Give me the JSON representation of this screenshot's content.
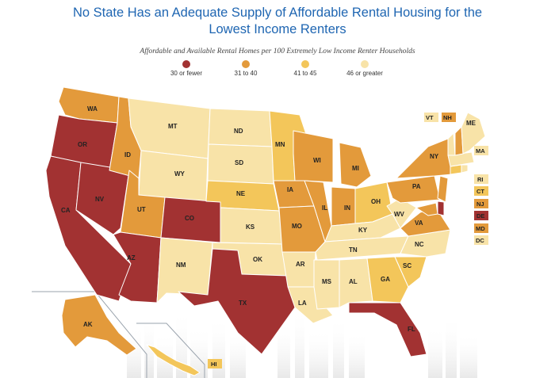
{
  "title_line1": "No State Has an Adequate Supply of Affordable Rental Housing for the",
  "title_line2": "Lowest Income Renters",
  "subtitle": "Affordable and Available Rental Homes per 100 Extremely Low Income Renter Households",
  "colors": {
    "c30": "#a23232",
    "c31": "#e39a3b",
    "c41": "#f3c65a",
    "c46": "#f8e3a8",
    "line": "#ffffff",
    "inset": "#9aa3ad"
  },
  "legend": [
    {
      "label": "30 or fewer",
      "color": "#a23232"
    },
    {
      "label": "31 to 40",
      "color": "#e39a3b"
    },
    {
      "label": "41 to 45",
      "color": "#f3c65a"
    },
    {
      "label": "46 or greater",
      "color": "#f8e3a8"
    }
  ],
  "states": [
    {
      "abbr": "WA",
      "cat": "31 to 40"
    },
    {
      "abbr": "OR",
      "cat": "30 or fewer"
    },
    {
      "abbr": "CA",
      "cat": "30 or fewer"
    },
    {
      "abbr": "NV",
      "cat": "30 or fewer"
    },
    {
      "abbr": "ID",
      "cat": "31 to 40"
    },
    {
      "abbr": "MT",
      "cat": "46 or greater"
    },
    {
      "abbr": "WY",
      "cat": "46 or greater"
    },
    {
      "abbr": "UT",
      "cat": "31 to 40"
    },
    {
      "abbr": "AZ",
      "cat": "30 or fewer"
    },
    {
      "abbr": "CO",
      "cat": "30 or fewer"
    },
    {
      "abbr": "NM",
      "cat": "46 or greater"
    },
    {
      "abbr": "ND",
      "cat": "46 or greater"
    },
    {
      "abbr": "SD",
      "cat": "46 or greater"
    },
    {
      "abbr": "NE",
      "cat": "41 to 45"
    },
    {
      "abbr": "KS",
      "cat": "46 or greater"
    },
    {
      "abbr": "OK",
      "cat": "46 or greater"
    },
    {
      "abbr": "TX",
      "cat": "30 or fewer"
    },
    {
      "abbr": "MN",
      "cat": "41 to 45"
    },
    {
      "abbr": "IA",
      "cat": "31 to 40"
    },
    {
      "abbr": "MO",
      "cat": "31 to 40"
    },
    {
      "abbr": "AR",
      "cat": "46 or greater"
    },
    {
      "abbr": "LA",
      "cat": "46 or greater"
    },
    {
      "abbr": "WI",
      "cat": "31 to 40"
    },
    {
      "abbr": "IL",
      "cat": "31 to 40"
    },
    {
      "abbr": "MI",
      "cat": "31 to 40"
    },
    {
      "abbr": "IN",
      "cat": "31 to 40"
    },
    {
      "abbr": "OH",
      "cat": "41 to 45"
    },
    {
      "abbr": "KY",
      "cat": "46 or greater"
    },
    {
      "abbr": "TN",
      "cat": "46 or greater"
    },
    {
      "abbr": "MS",
      "cat": "46 or greater"
    },
    {
      "abbr": "AL",
      "cat": "46 or greater"
    },
    {
      "abbr": "GA",
      "cat": "41 to 45"
    },
    {
      "abbr": "FL",
      "cat": "30 or fewer"
    },
    {
      "abbr": "SC",
      "cat": "41 to 45"
    },
    {
      "abbr": "NC",
      "cat": "46 or greater"
    },
    {
      "abbr": "VA",
      "cat": "31 to 40"
    },
    {
      "abbr": "WV",
      "cat": "46 or greater"
    },
    {
      "abbr": "PA",
      "cat": "31 to 40"
    },
    {
      "abbr": "NY",
      "cat": "31 to 40"
    },
    {
      "abbr": "ME",
      "cat": "46 or greater"
    },
    {
      "abbr": "AK",
      "cat": "31 to 40"
    },
    {
      "abbr": "HI",
      "cat": "41 to 45"
    }
  ],
  "small_states": [
    {
      "abbr": "VT",
      "cat": "46 or greater"
    },
    {
      "abbr": "NH",
      "cat": "31 to 40"
    },
    {
      "abbr": "MA",
      "cat": "46 or greater"
    },
    {
      "abbr": "RI",
      "cat": "46 or greater"
    },
    {
      "abbr": "CT",
      "cat": "41 to 45"
    },
    {
      "abbr": "NJ",
      "cat": "31 to 40"
    },
    {
      "abbr": "DE",
      "cat": "30 or fewer"
    },
    {
      "abbr": "MD",
      "cat": "31 to 40"
    },
    {
      "abbr": "DC",
      "cat": "46 or greater"
    }
  ]
}
